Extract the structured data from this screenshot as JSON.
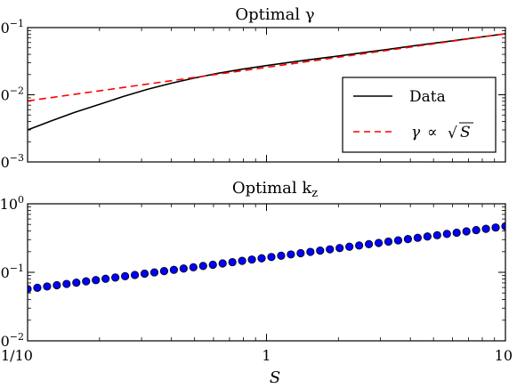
{
  "chart_data": [
    {
      "type": "line",
      "title": "Optimal γ",
      "xlabel": "",
      "ylabel": "",
      "xscale": "log",
      "yscale": "log",
      "xlim": [
        0.1,
        10
      ],
      "ylim": [
        0.001,
        0.1
      ],
      "xticks": [
        {
          "value": 0.1,
          "label": ""
        },
        {
          "value": 1,
          "label": ""
        },
        {
          "value": 10,
          "label": ""
        }
      ],
      "yticks": [
        {
          "value": 0.001,
          "label": "10⁻³",
          "base": "10",
          "exp": "−3"
        },
        {
          "value": 0.01,
          "label": "10⁻²",
          "base": "10",
          "exp": "−2"
        },
        {
          "value": 0.1,
          "label": "10⁻¹",
          "base": "10",
          "exp": "−1"
        }
      ],
      "legend": {
        "position": "lower-right"
      },
      "series": [
        {
          "name": "Data",
          "color": "#000000",
          "dash": "solid",
          "x": [
            0.1,
            0.126,
            0.158,
            0.2,
            0.251,
            0.316,
            0.398,
            0.5,
            0.631,
            0.794,
            1.0,
            1.26,
            1.58,
            2.0,
            2.51,
            3.16,
            3.98,
            5.0,
            6.31,
            7.94,
            10.0
          ],
          "y": [
            0.003,
            0.0041,
            0.0055,
            0.0072,
            0.0094,
            0.012,
            0.0148,
            0.0178,
            0.021,
            0.0241,
            0.0272,
            0.0305,
            0.034,
            0.0378,
            0.0422,
            0.047,
            0.0525,
            0.0585,
            0.065,
            0.0725,
            0.081
          ]
        },
        {
          "name": "γ ∝ √S",
          "name_parts": {
            "gamma": "γ",
            "prop": "∝",
            "sqrt": "√",
            "var": "S"
          },
          "color": "#ff0000",
          "dash": "dashed",
          "x": [
            0.1,
            10.0
          ],
          "y": [
            0.0081,
            0.081
          ]
        }
      ]
    },
    {
      "type": "scatter",
      "title": "Optimal k",
      "title_sub": "z",
      "xlabel": "S",
      "ylabel": "",
      "xscale": "log",
      "yscale": "log",
      "xlim": [
        0.1,
        10
      ],
      "ylim": [
        0.01,
        1
      ],
      "xticks": [
        {
          "value": 0.1,
          "label": "1/10"
        },
        {
          "value": 1,
          "label": "1"
        },
        {
          "value": 10,
          "label": "10"
        }
      ],
      "yticks": [
        {
          "value": 0.01,
          "label": "10⁻²",
          "base": "10",
          "exp": "−2"
        },
        {
          "value": 0.1,
          "label": "10⁻¹",
          "base": "10",
          "exp": "−1"
        },
        {
          "value": 1,
          "label": "10⁰",
          "base": "10",
          "exp": "0"
        }
      ],
      "series": [
        {
          "name": "",
          "marker_color": "#0000ff",
          "edge_color": "#000000",
          "x_start": 0.1,
          "x_end": 10,
          "count": 50,
          "y_at_start": 0.057,
          "y_at_end": 0.47,
          "spacing": "log-uniform"
        }
      ]
    }
  ]
}
